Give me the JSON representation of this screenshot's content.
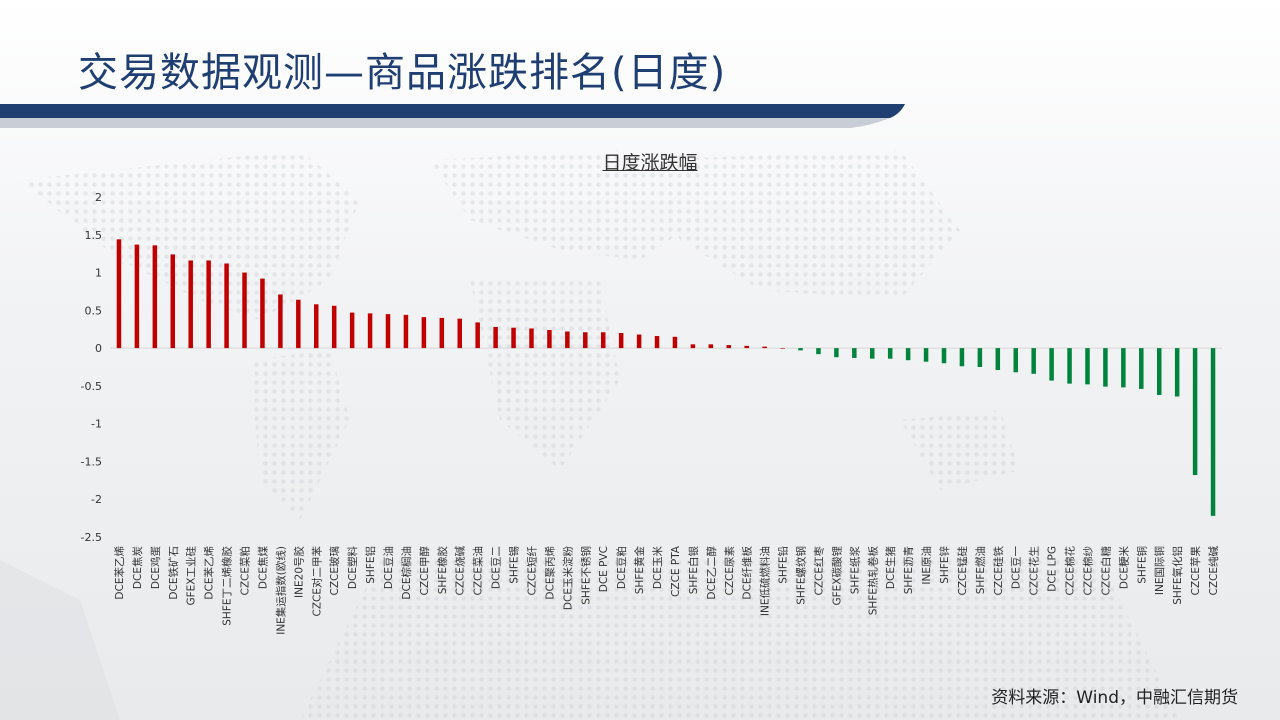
{
  "page": {
    "title": "交易数据观测—商品涨跌排名(日度)",
    "source": "资料来源：Wind，中融汇信期货"
  },
  "chart_data": {
    "type": "bar",
    "title": "日度涨跌幅",
    "xlabel": "",
    "ylabel": "",
    "ylim": [
      -2.5,
      2
    ],
    "yticks": [
      2,
      1.5,
      1,
      0.5,
      0,
      -0.5,
      -1,
      -1.5,
      -2,
      -2.5
    ],
    "positive_color": "#c00000",
    "negative_color": "#00843d",
    "categories": [
      "DCE苯乙烯",
      "DCE焦炭",
      "DCE鸡蛋",
      "DCE铁矿石",
      "GFEX工业硅",
      "DCE苯乙烯",
      "SHFE丁二烯橡胶",
      "CZCE菜粕",
      "DCE焦煤",
      "INE集运指数(欧线)",
      "INE20号胶",
      "CZCE对二甲苯",
      "CZCE玻璃",
      "DCE塑料",
      "SHFE铝",
      "DCE豆油",
      "DCE棕榈油",
      "CZCE甲醇",
      "SHFE橡胶",
      "CZCE烧碱",
      "CZCE菜油",
      "DCE豆二",
      "SHFE锡",
      "CZCE短纤",
      "DCE聚丙烯",
      "DCE玉米淀粉",
      "SHFE不锈钢",
      "DCE PVC",
      "DCE豆粕",
      "SHFE黄金",
      "DCE玉米",
      "CZCE PTA",
      "SHFE白银",
      "DCE乙二醇",
      "CZCE尿素",
      "DCE纤维板",
      "INE低硫燃料油",
      "SHFE铅",
      "SHFE螺纹钢",
      "CZCE红枣",
      "GFEX碳酸锂",
      "SHFE纸浆",
      "SHFE热轧卷板",
      "DCE生猪",
      "SHFE沥青",
      "INE原油",
      "SHFE锌",
      "CZCE锰硅",
      "SHFE燃油",
      "CZCE硅铁",
      "DCE豆一",
      "CZCE花生",
      "DCE LPG",
      "CZCE棉花",
      "CZCE棉纱",
      "CZCE白糖",
      "DCE粳米",
      "SHFE铜",
      "INE国际铜",
      "SHFE氧化铝",
      "CZCE苹果",
      "CZCE纯碱"
    ],
    "values": [
      1.44,
      1.37,
      1.36,
      1.24,
      1.16,
      1.16,
      1.12,
      1.0,
      0.92,
      0.71,
      0.64,
      0.58,
      0.56,
      0.47,
      0.46,
      0.45,
      0.44,
      0.41,
      0.4,
      0.39,
      0.34,
      0.28,
      0.27,
      0.26,
      0.24,
      0.22,
      0.21,
      0.21,
      0.2,
      0.18,
      0.16,
      0.15,
      0.05,
      0.05,
      0.04,
      0.03,
      0.02,
      0.0,
      -0.03,
      -0.08,
      -0.12,
      -0.13,
      -0.14,
      -0.14,
      -0.16,
      -0.18,
      -0.2,
      -0.24,
      -0.25,
      -0.29,
      -0.32,
      -0.34,
      -0.43,
      -0.47,
      -0.48,
      -0.51,
      -0.52,
      -0.54,
      -0.62,
      -0.64,
      -1.68,
      -2.22
    ]
  }
}
